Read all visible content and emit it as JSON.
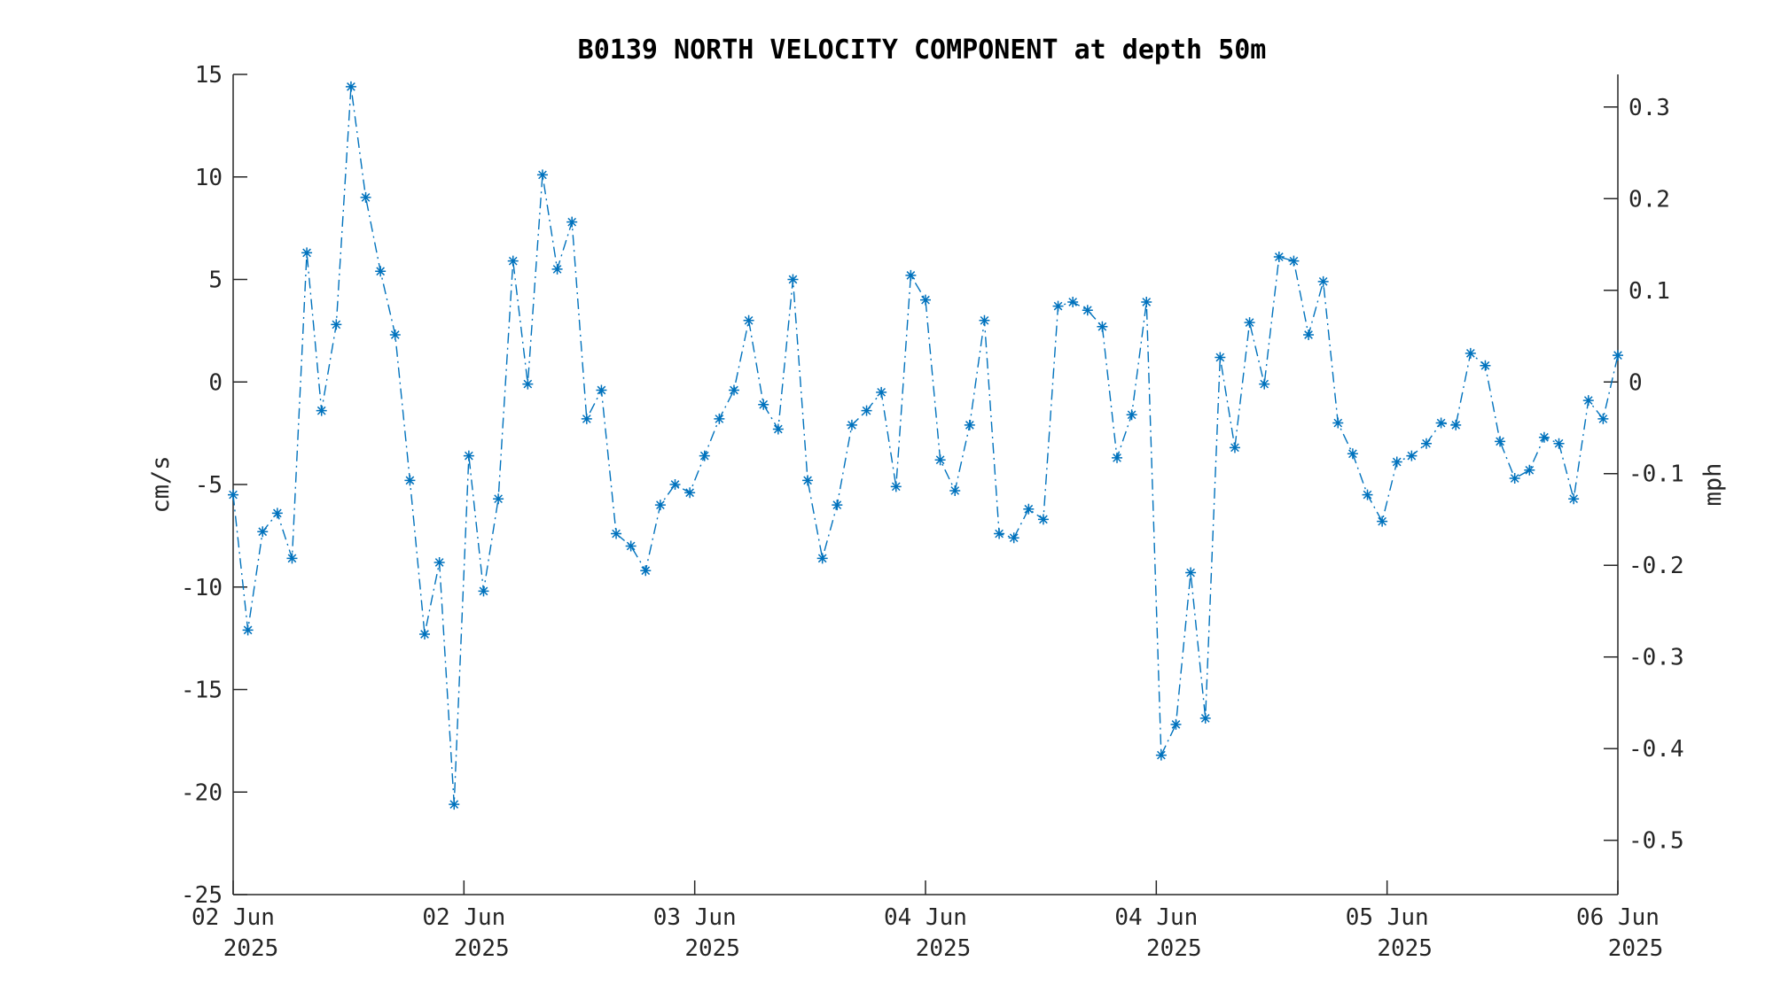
{
  "chart_data": {
    "type": "line",
    "title": "B0139 NORTH VELOCITY COMPONENT at depth 50m",
    "ylabel": "cm/s",
    "ylabel_right": "mph",
    "ylim": [
      -25,
      15
    ],
    "y_ticks": [
      "15",
      "10",
      "5",
      "0",
      "-5",
      "-10",
      "-15",
      "-20",
      "-25"
    ],
    "y_ticks_right": [
      "0.3",
      "0.2",
      "0.1",
      "0",
      "-0.1",
      "-0.2",
      "-0.3",
      "-0.4",
      "-0.5"
    ],
    "x_ticks": [
      {
        "day": "02 Jun",
        "year": "2025"
      },
      {
        "day": "02 Jun",
        "year": "2025"
      },
      {
        "day": "03 Jun",
        "year": "2025"
      },
      {
        "day": "04 Jun",
        "year": "2025"
      },
      {
        "day": "04 Jun",
        "year": "2025"
      },
      {
        "day": "05 Jun",
        "year": "2025"
      },
      {
        "day": "06 Jun",
        "year": "2025"
      }
    ],
    "line_color": "#0072BD",
    "line_style": "dash-dot",
    "marker": "asterisk",
    "grid": false,
    "series": [
      {
        "values": [
          -5.5,
          -12.1,
          -7.3,
          -6.4,
          -8.6,
          6.3,
          -1.4,
          2.8,
          14.4,
          9.0,
          5.4,
          2.3,
          -4.8,
          -12.3,
          -8.8,
          -20.6,
          -3.6,
          -10.2,
          -5.7,
          5.9,
          -0.1,
          10.1,
          5.5,
          7.8,
          -1.8,
          -0.4,
          -7.4,
          -8.0,
          -9.2,
          -6.0,
          -5.0,
          -5.4,
          -3.6,
          -1.8,
          -0.4,
          3.0,
          -1.1,
          -2.3,
          5.0,
          -4.8,
          -8.6,
          -6.0,
          -2.1,
          -1.4,
          -0.5,
          -5.1,
          5.2,
          4.0,
          -3.8,
          -5.3,
          -2.1,
          3.0,
          -7.4,
          -7.6,
          -6.2,
          -6.7,
          3.7,
          3.9,
          3.5,
          2.7,
          -3.7,
          -1.6,
          3.9,
          -18.2,
          -16.7,
          -9.3,
          -16.4,
          1.2,
          -3.2,
          2.9,
          -0.1,
          6.1,
          5.9,
          2.3,
          4.9,
          -2.0,
          -3.5,
          -5.5,
          -6.8,
          -3.9,
          -3.6,
          -3.0,
          -2.0,
          -2.1,
          1.4,
          0.8,
          -2.9,
          -4.7,
          -4.3,
          -2.7,
          -3.0,
          -5.7,
          -0.9,
          -1.8,
          1.3
        ]
      }
    ]
  }
}
